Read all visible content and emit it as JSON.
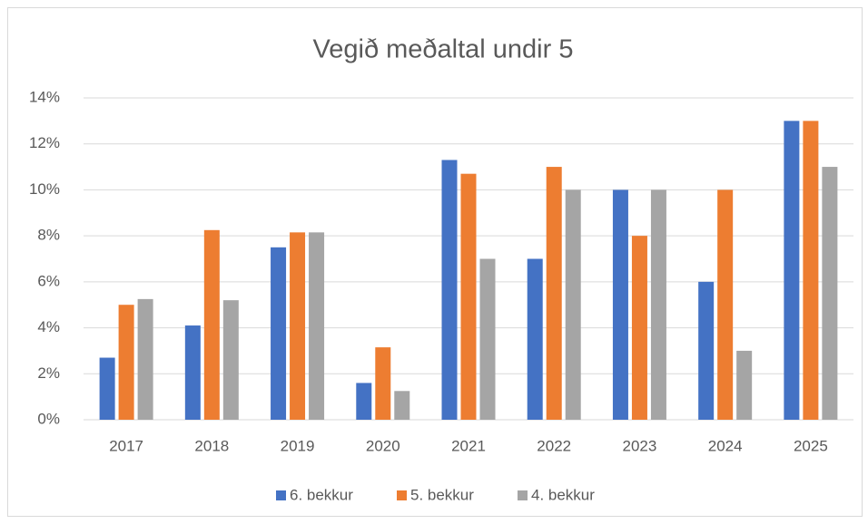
{
  "chart_data": {
    "type": "bar",
    "title": "Vegið meðaltal undir 5",
    "categories": [
      "2017",
      "2018",
      "2019",
      "2020",
      "2021",
      "2022",
      "2023",
      "2024",
      "2025"
    ],
    "series": [
      {
        "name": "6. bekkur",
        "color": "#4472c4",
        "values": [
          2.7,
          4.1,
          7.5,
          1.6,
          11.3,
          7.0,
          10.0,
          6.0,
          13.0
        ]
      },
      {
        "name": "5. bekkur",
        "color": "#ed7d31",
        "values": [
          5.0,
          8.25,
          8.15,
          3.15,
          10.7,
          11.0,
          8.0,
          10.0,
          13.0
        ]
      },
      {
        "name": "4. bekkur",
        "color": "#a5a5a5",
        "values": [
          5.25,
          5.2,
          8.15,
          1.25,
          7.0,
          10.0,
          10.0,
          3.0,
          11.0
        ]
      }
    ],
    "ylim": [
      0,
      14
    ],
    "yticks": [
      {
        "value": 0,
        "label": "0%"
      },
      {
        "value": 2,
        "label": "2%"
      },
      {
        "value": 4,
        "label": "4%"
      },
      {
        "value": 6,
        "label": "6%"
      },
      {
        "value": 8,
        "label": "8%"
      },
      {
        "value": 10,
        "label": "10%"
      },
      {
        "value": 12,
        "label": "12%"
      },
      {
        "value": 14,
        "label": "14%"
      }
    ],
    "grid": true,
    "legend": "bottom"
  }
}
